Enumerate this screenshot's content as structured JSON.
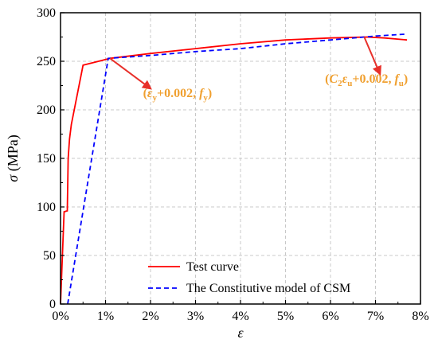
{
  "chart_data": {
    "type": "line",
    "title": "",
    "xlabel": "ε",
    "ylabel_sym": "σ",
    "ylabel_unit": " (MPa)",
    "xlim": [
      0,
      8
    ],
    "ylim": [
      0,
      300
    ],
    "xticks": [
      0,
      1,
      2,
      3,
      4,
      5,
      6,
      7,
      8
    ],
    "xtick_labels": [
      "0%",
      "1%",
      "2%",
      "3%",
      "4%",
      "5%",
      "6%",
      "7%",
      "8%"
    ],
    "yticks": [
      0,
      50,
      100,
      150,
      200,
      250,
      300
    ],
    "ytick_labels": [
      "0",
      "50",
      "100",
      "150",
      "200",
      "250",
      "300"
    ],
    "grid": true,
    "legend_position": "bottom-right",
    "series": [
      {
        "name": "Test curve",
        "color": "#FF0000",
        "dash": "solid",
        "x": [
          0,
          0.08,
          0.15,
          0.17,
          0.2,
          0.24,
          0.5,
          1.1,
          2.0,
          3.0,
          4.0,
          5.0,
          6.0,
          6.8,
          7.2,
          7.7
        ],
        "y": [
          0,
          95,
          96,
          150,
          170,
          185,
          246,
          253,
          258,
          263,
          268,
          272,
          274,
          275,
          274,
          272
        ]
      },
      {
        "name": "The Constitutive model of CSM",
        "color": "#0000FF",
        "dash": "dashed",
        "x": [
          0.16,
          1.06,
          2.0,
          3.0,
          4.0,
          5.0,
          6.0,
          7.0,
          7.7
        ],
        "y": [
          0,
          253,
          256,
          260,
          263,
          268,
          272,
          276,
          278
        ]
      }
    ],
    "annotations": [
      {
        "color": "#E8302A",
        "label_color": "#F0A030",
        "label_text": "(ε_y+0.002, f_y)",
        "target": [
          1.1,
          253
        ],
        "arrow_end": [
          2.0,
          222
        ],
        "label_pos": [
          2.6,
          213
        ]
      },
      {
        "color": "#E8302A",
        "label_color": "#F0A030",
        "label_text": "(C₂ε_u+0.002, f_u)",
        "target": [
          6.75,
          275
        ],
        "arrow_end": [
          7.1,
          237
        ],
        "label_pos": [
          6.8,
          228
        ]
      }
    ]
  }
}
